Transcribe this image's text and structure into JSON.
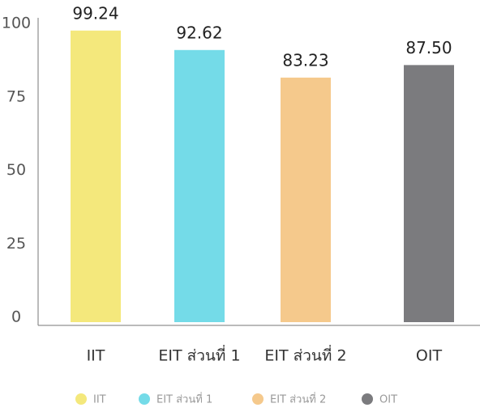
{
  "chart_data": {
    "type": "bar",
    "categories": [
      "IIT",
      "EIT ส่วนที่ 1",
      "EIT ส่วนที่ 2",
      "OIT"
    ],
    "series": [
      {
        "name": "IIT",
        "color": "#f4e87c"
      },
      {
        "name": "EIT ส่วนที่ 1",
        "color": "#74dbe8"
      },
      {
        "name": "EIT ส่วนที่ 2",
        "color": "#f5c98c"
      },
      {
        "name": "OIT",
        "color": "#7b7b7e"
      }
    ],
    "values": [
      99.24,
      92.62,
      83.23,
      87.5
    ],
    "value_labels": [
      "99.24",
      "92.62",
      "83.23",
      "87.50"
    ],
    "ylim": [
      0,
      100
    ],
    "yticks": [
      0,
      25,
      50,
      75,
      100
    ]
  }
}
